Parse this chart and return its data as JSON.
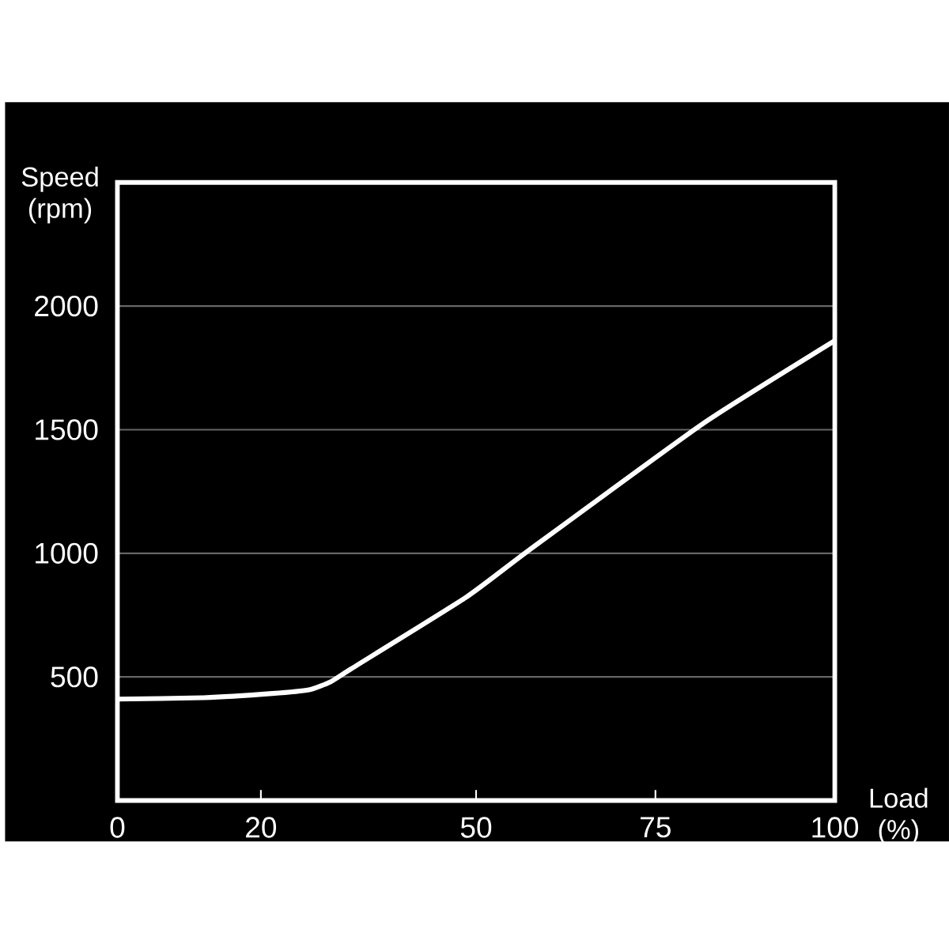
{
  "chart_data": {
    "type": "line",
    "xlabel": "Load (%)",
    "ylabel": "Speed (rpm)",
    "x": [
      0,
      12,
      21.6,
      26.7,
      29.7,
      32.6,
      48.6,
      57.4,
      81.6,
      100
    ],
    "series": [
      {
        "color": "#ffffff",
        "values": [
          410,
          416,
          433,
          448,
          480,
          533,
          822,
          1013,
          1524,
          1860
        ]
      }
    ],
    "xlim": [
      0,
      100
    ],
    "ylim": [
      0,
      2500
    ],
    "xticks": [
      0,
      20,
      50,
      75,
      100
    ],
    "yticks": [
      500,
      1000,
      1500,
      2000
    ],
    "grid": "y",
    "marker": "none"
  }
}
